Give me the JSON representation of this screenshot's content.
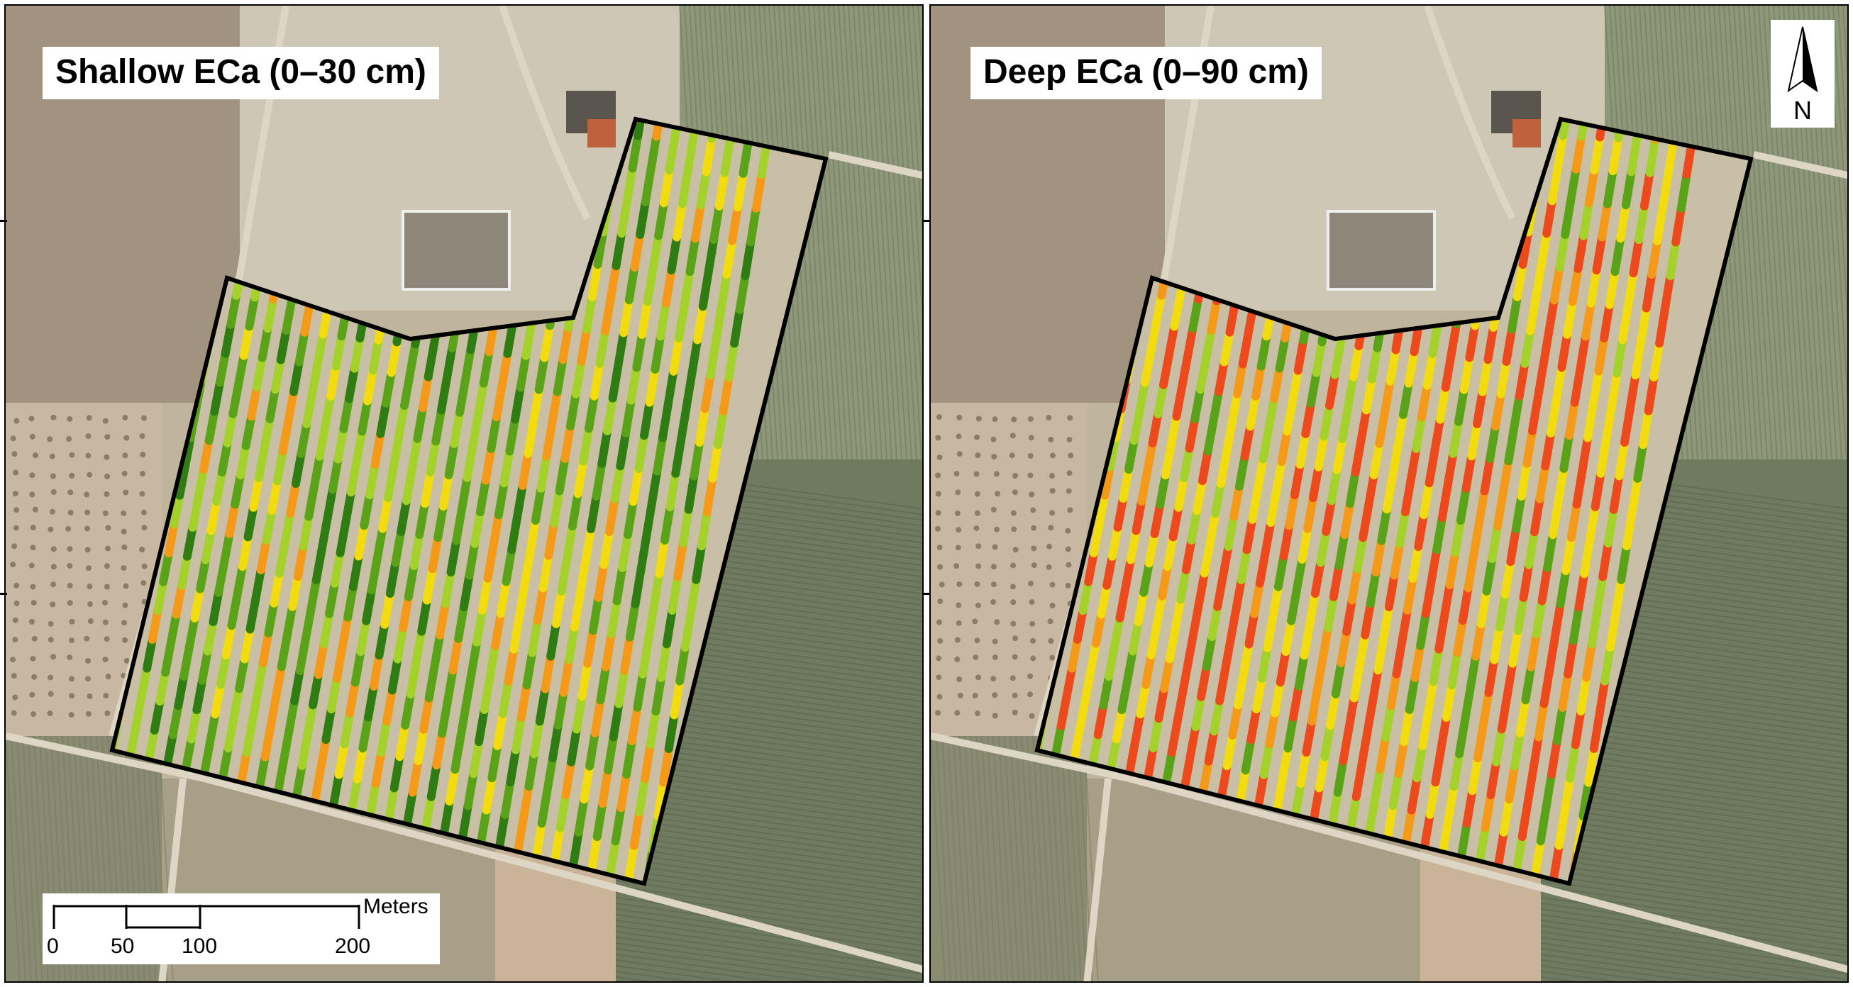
{
  "panels": [
    {
      "id": "left",
      "title": "Shallow ECa (0–30 cm)",
      "dominant_tone": "green-yellow"
    },
    {
      "id": "right",
      "title": "Deep ECa (0–90 cm)",
      "dominant_tone": "yellow-red"
    }
  ],
  "north_arrow": {
    "label": "N",
    "icon": "north-arrow-icon"
  },
  "scalebar": {
    "ticks": [
      "0",
      "50",
      "100",
      "200"
    ],
    "unit": "Meters"
  },
  "colors": {
    "eca_low_dark_green": "#2f7d12",
    "eca_green": "#5aa318",
    "eca_light_green": "#a4d12a",
    "eca_yellow": "#f2dc10",
    "eca_orange": "#f59a18",
    "eca_red": "#ec4a1c",
    "field_boundary": "#000000",
    "background_soil": "#c9bfa6"
  }
}
